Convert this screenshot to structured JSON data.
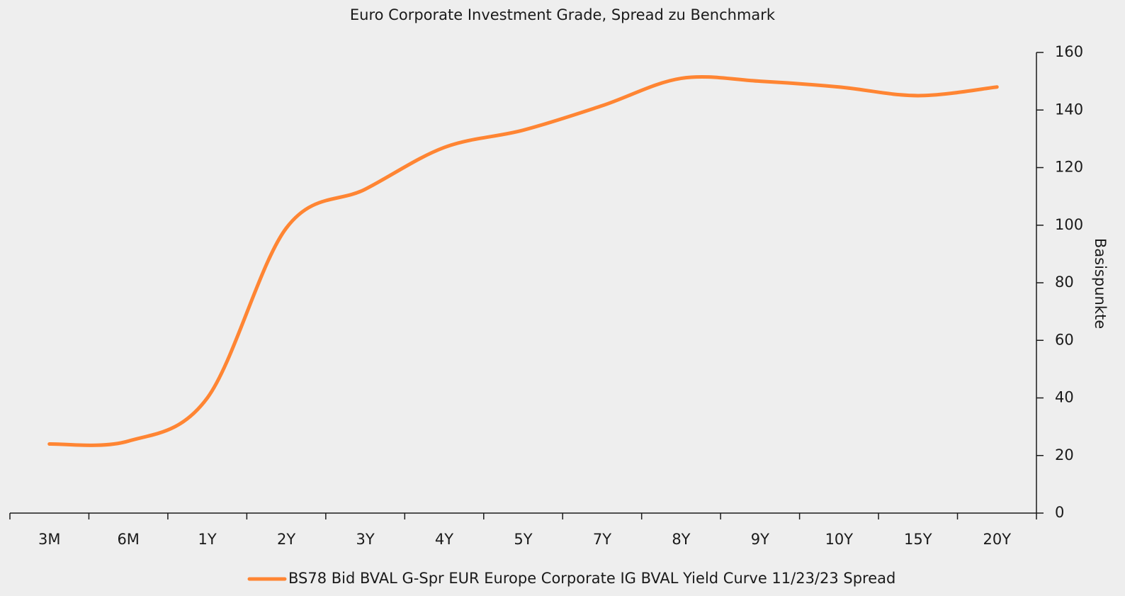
{
  "chart_data": {
    "type": "line",
    "title": "Euro Corporate Investment Grade, Spread zu Benchmark",
    "y_label": "Basispunkte",
    "categories": [
      "3M",
      "6M",
      "1Y",
      "2Y",
      "3Y",
      "4Y",
      "5Y",
      "7Y",
      "8Y",
      "9Y",
      "10Y",
      "15Y",
      "20Y"
    ],
    "series": [
      {
        "name": "BS78 Bid BVAL G-Spr EUR Europe Corporate IG BVAL Yield Curve 11/23/23 Spread",
        "color": "#ff8533",
        "values": [
          24,
          25,
          40,
          99,
          112.5,
          127,
          133,
          141.5,
          151,
          150,
          148,
          145,
          148
        ]
      }
    ],
    "ylim": [
      0,
      160
    ],
    "yticks": [
      0,
      20,
      40,
      60,
      80,
      100,
      120,
      140,
      160
    ],
    "y_axis_side": "right",
    "grid": false,
    "legend": "bottom"
  }
}
